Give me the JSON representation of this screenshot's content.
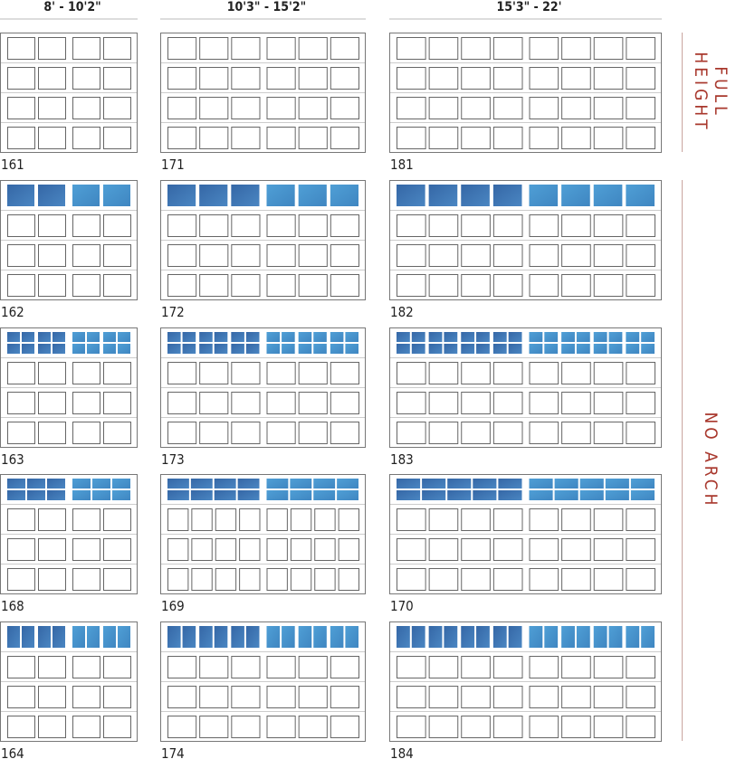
{
  "columns": [
    {
      "label": "8' - 10'2\""
    },
    {
      "label": "10'3\" - 15'2\""
    },
    {
      "label": "15'3\" - 22'"
    }
  ],
  "side_labels": [
    {
      "lines": [
        "FULL",
        "HEIGHT"
      ]
    },
    {
      "lines": [
        "NO ARCH"
      ]
    }
  ],
  "rows": [
    [
      "161",
      "171",
      "181"
    ],
    [
      "162",
      "172",
      "182"
    ],
    [
      "163",
      "173",
      "183"
    ],
    [
      "168",
      "169",
      "170"
    ],
    [
      "164",
      "174",
      "184"
    ]
  ]
}
